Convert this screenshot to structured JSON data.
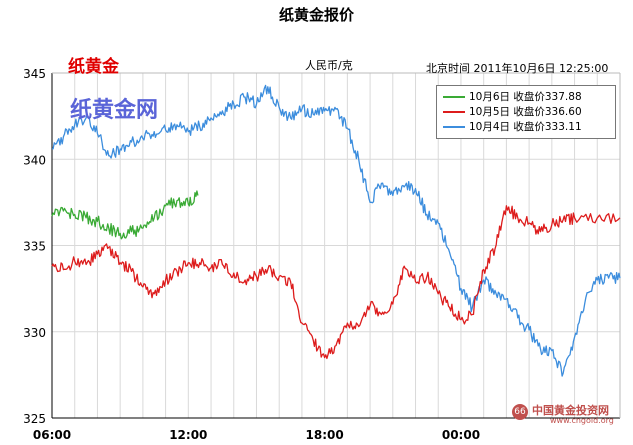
{
  "title": "纸黄金报价",
  "brand": "纸黄金",
  "watermark": "纸黄金网",
  "unit": "人民币/克",
  "timestamp": "北京时间 2011年10月6日 12:25:00",
  "logo": {
    "name": "中国黄金投资网",
    "url": "www.cngold.org",
    "mark": "66"
  },
  "colors": {
    "oct6": "#3aaa35",
    "oct5": "#dd1c1c",
    "oct4": "#3c8ddd",
    "grid": "#d9d9d9",
    "axis": "#000000"
  },
  "chart_data": {
    "type": "line",
    "title": "纸黄金报价",
    "ylabel": "人民币/克",
    "ylim": [
      325,
      345
    ],
    "y_ticks": [
      325,
      330,
      335,
      340,
      345
    ],
    "x_ticks": [
      "06:00",
      "12:00",
      "18:00",
      "00:00"
    ],
    "x_range_hours": [
      6,
      31
    ],
    "grid": true,
    "legend_position": "top-right",
    "series": [
      {
        "name": "10月6日 收盘价337.88",
        "color": "#3aaa35",
        "points": [
          [
            6.0,
            336.7
          ],
          [
            6.5,
            337.0
          ],
          [
            7.0,
            336.8
          ],
          [
            7.5,
            336.6
          ],
          [
            8.0,
            336.4
          ],
          [
            8.5,
            336.0
          ],
          [
            9.0,
            335.7
          ],
          [
            9.5,
            335.8
          ],
          [
            10.0,
            336.0
          ],
          [
            10.5,
            336.6
          ],
          [
            11.0,
            337.3
          ],
          [
            11.5,
            337.6
          ],
          [
            12.0,
            337.4
          ],
          [
            12.42,
            337.9
          ]
        ]
      },
      {
        "name": "10月5日 收盘价336.60",
        "color": "#dd1c1c",
        "points": [
          [
            6.0,
            333.8
          ],
          [
            6.5,
            333.6
          ],
          [
            7.0,
            334.1
          ],
          [
            7.5,
            333.9
          ],
          [
            8.0,
            334.5
          ],
          [
            8.5,
            334.9
          ],
          [
            9.0,
            334.0
          ],
          [
            9.5,
            333.5
          ],
          [
            10.0,
            332.6
          ],
          [
            10.5,
            332.2
          ],
          [
            11.0,
            333.0
          ],
          [
            11.5,
            333.5
          ],
          [
            12.0,
            334.0
          ],
          [
            12.5,
            334.0
          ],
          [
            13.0,
            333.7
          ],
          [
            13.5,
            333.9
          ],
          [
            14.0,
            333.4
          ],
          [
            14.5,
            333.0
          ],
          [
            15.0,
            333.2
          ],
          [
            15.5,
            333.6
          ],
          [
            16.0,
            333.2
          ],
          [
            16.5,
            332.9
          ],
          [
            17.0,
            330.5
          ],
          [
            17.5,
            329.5
          ],
          [
            18.0,
            328.5
          ],
          [
            18.5,
            329.2
          ],
          [
            19.0,
            330.5
          ],
          [
            19.5,
            330.3
          ],
          [
            20.0,
            331.5
          ],
          [
            20.5,
            331.0
          ],
          [
            21.0,
            331.6
          ],
          [
            21.5,
            333.8
          ],
          [
            22.0,
            332.9
          ],
          [
            22.5,
            333.2
          ],
          [
            23.0,
            332.2
          ],
          [
            23.5,
            331.4
          ],
          [
            24.0,
            330.7
          ],
          [
            24.5,
            331.0
          ],
          [
            25.0,
            333.6
          ],
          [
            25.5,
            334.8
          ],
          [
            26.0,
            337.3
          ],
          [
            26.5,
            336.6
          ],
          [
            27.0,
            336.3
          ],
          [
            27.5,
            335.8
          ],
          [
            28.0,
            336.2
          ],
          [
            28.5,
            336.5
          ],
          [
            29.0,
            336.6
          ],
          [
            30.0,
            336.6
          ],
          [
            31.0,
            336.6
          ]
        ]
      },
      {
        "name": "10月4日 收盘价333.11",
        "color": "#3c8ddd",
        "points": [
          [
            6.0,
            340.6
          ],
          [
            6.5,
            341.3
          ],
          [
            7.0,
            342.0
          ],
          [
            7.5,
            342.4
          ],
          [
            8.0,
            341.5
          ],
          [
            8.5,
            340.2
          ],
          [
            9.0,
            340.6
          ],
          [
            9.5,
            341.0
          ],
          [
            10.0,
            341.2
          ],
          [
            10.5,
            341.6
          ],
          [
            11.0,
            341.7
          ],
          [
            11.5,
            342.0
          ],
          [
            12.0,
            341.6
          ],
          [
            12.5,
            341.9
          ],
          [
            13.0,
            342.4
          ],
          [
            13.5,
            342.8
          ],
          [
            14.0,
            343.2
          ],
          [
            14.5,
            343.6
          ],
          [
            15.0,
            343.2
          ],
          [
            15.5,
            344.2
          ],
          [
            16.0,
            343.0
          ],
          [
            16.5,
            342.4
          ],
          [
            17.0,
            342.9
          ],
          [
            17.5,
            342.6
          ],
          [
            18.0,
            342.8
          ],
          [
            18.5,
            342.9
          ],
          [
            19.0,
            341.8
          ],
          [
            19.5,
            340.0
          ],
          [
            20.0,
            337.5
          ],
          [
            20.5,
            338.6
          ],
          [
            21.0,
            337.9
          ],
          [
            21.5,
            338.4
          ],
          [
            22.0,
            338.3
          ],
          [
            22.5,
            336.8
          ],
          [
            23.0,
            336.3
          ],
          [
            23.5,
            334.6
          ],
          [
            24.0,
            332.5
          ],
          [
            24.5,
            331.4
          ],
          [
            25.0,
            333.0
          ],
          [
            25.5,
            332.4
          ],
          [
            26.0,
            331.9
          ],
          [
            26.5,
            330.8
          ],
          [
            27.0,
            330.1
          ],
          [
            27.5,
            329.0
          ],
          [
            28.0,
            328.9
          ],
          [
            28.5,
            327.6
          ],
          [
            29.0,
            329.7
          ],
          [
            29.5,
            332.0
          ],
          [
            30.0,
            333.0
          ],
          [
            30.5,
            333.11
          ],
          [
            31.0,
            333.11
          ]
        ]
      }
    ]
  }
}
